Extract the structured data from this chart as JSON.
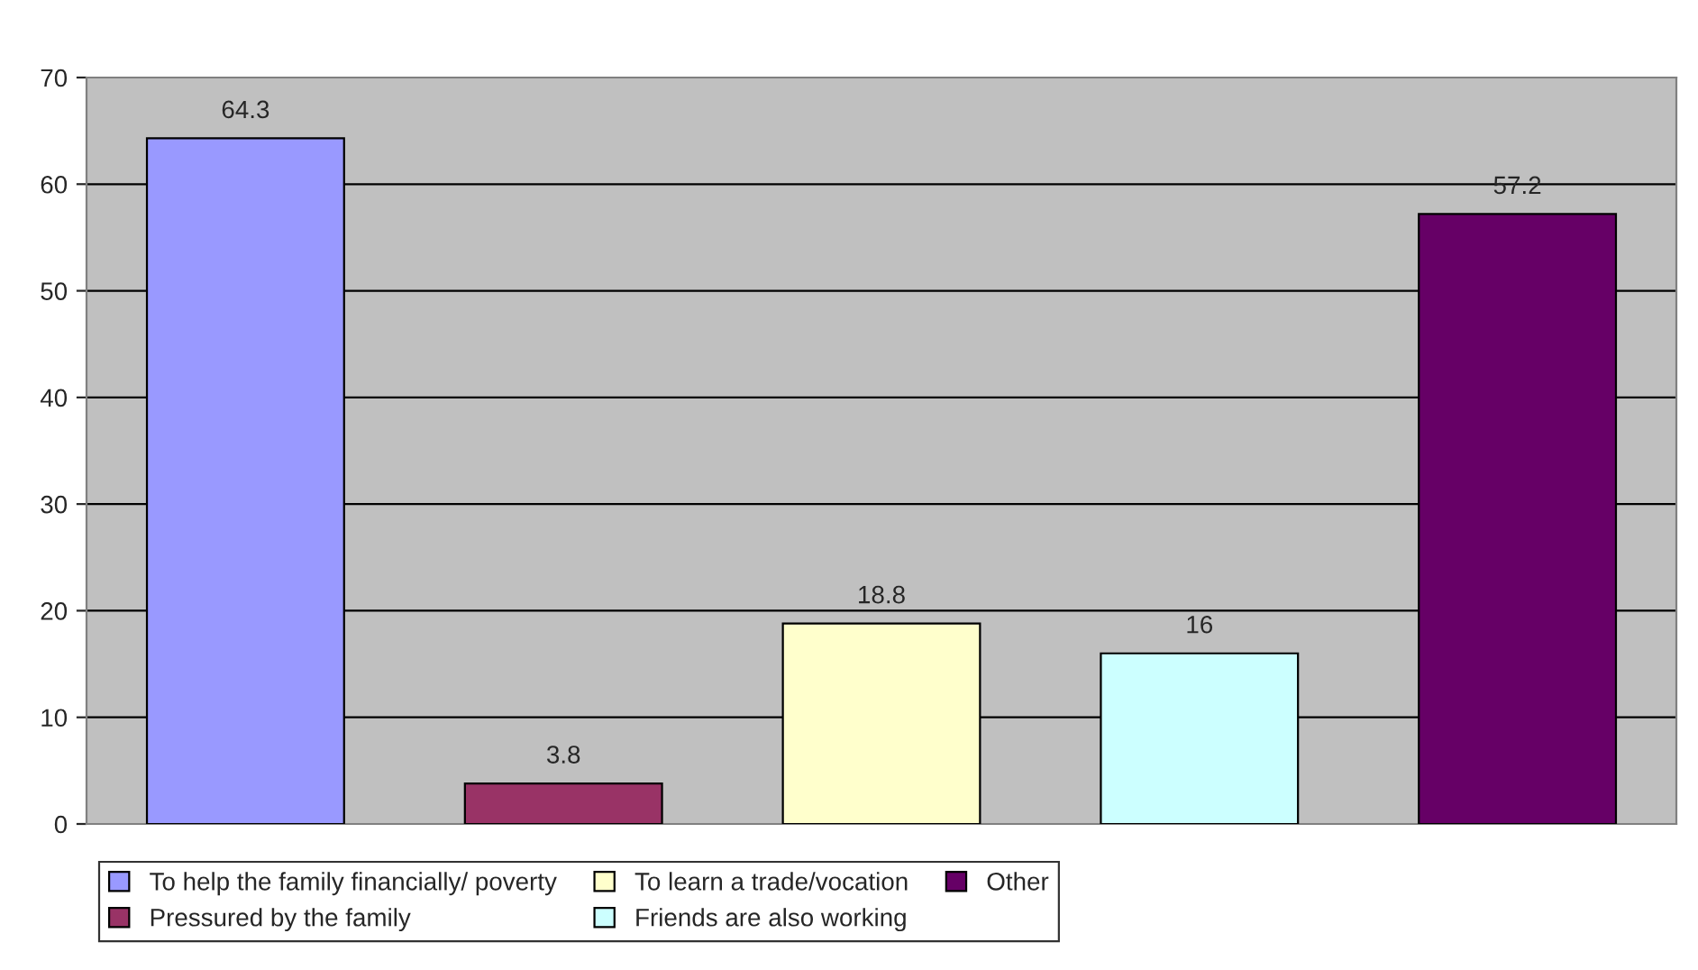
{
  "chart_data": {
    "type": "bar",
    "categories": [
      null,
      null,
      null,
      null,
      null
    ],
    "series": [
      {
        "name": "To help the family financially/ poverty",
        "color": "#9999ff",
        "values": [
          64.3,
          null,
          null,
          null,
          null
        ]
      },
      {
        "name": "Pressured by the family",
        "color": "#993366",
        "values": [
          null,
          3.8,
          null,
          null,
          null
        ]
      },
      {
        "name": "To learn a trade/vocation",
        "color": "#ffffcc",
        "values": [
          null,
          null,
          18.8,
          null,
          null
        ]
      },
      {
        "name": "Friends are also working",
        "color": "#ccffff",
        "values": [
          null,
          null,
          null,
          16,
          null
        ]
      },
      {
        "name": "Other",
        "color": "#660066",
        "values": [
          null,
          null,
          null,
          null,
          57.2
        ]
      }
    ],
    "ylim": [
      0,
      70
    ],
    "yticks": [
      0,
      10,
      20,
      30,
      40,
      50,
      60,
      70
    ],
    "grid": "y",
    "data_labels": true,
    "legend": "bottom"
  }
}
